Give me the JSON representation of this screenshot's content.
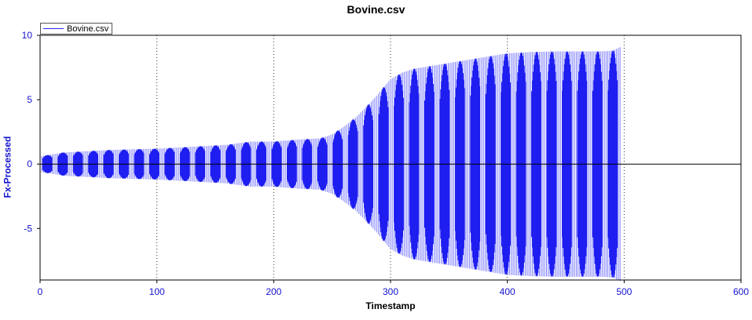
{
  "chart_data": {
    "type": "line",
    "title": "Bovine.csv",
    "xlabel": "Timestamp",
    "ylabel": "Fx-Processed",
    "xlim": [
      0,
      600
    ],
    "ylim": [
      -9,
      10
    ],
    "x_ticks": [
      0,
      100,
      200,
      300,
      400,
      500,
      600
    ],
    "y_ticks": [
      10,
      5,
      0,
      -5
    ],
    "grid": "vertical dotted",
    "legend_position": "top-left",
    "colors": {
      "series": "#1e1ef0",
      "axis_text": "#1414d0"
    },
    "series": [
      {
        "name": "Bovine.csv",
        "description_values": "oscillating signal; amplitude envelope (Timestamp, amplitude)",
        "envelope_x": [
          0,
          20,
          40,
          60,
          80,
          100,
          120,
          140,
          160,
          180,
          200,
          220,
          240,
          250,
          260,
          270,
          280,
          290,
          300,
          310,
          320,
          340,
          360,
          380,
          400,
          420,
          440,
          460,
          480,
          490,
          497
        ],
        "envelope_amp": [
          0.6,
          0.9,
          1.0,
          1.1,
          1.15,
          1.2,
          1.3,
          1.4,
          1.5,
          1.75,
          1.75,
          1.9,
          2.0,
          2.3,
          2.9,
          3.6,
          4.5,
          5.5,
          6.6,
          7.1,
          7.4,
          7.7,
          8.0,
          8.3,
          8.6,
          8.7,
          8.75,
          8.75,
          8.75,
          8.8,
          9.1
        ],
        "cycles": 38,
        "oscillation_end": 497
      },
      {
        "name": "",
        "type": "hline",
        "y": 0
      }
    ]
  }
}
